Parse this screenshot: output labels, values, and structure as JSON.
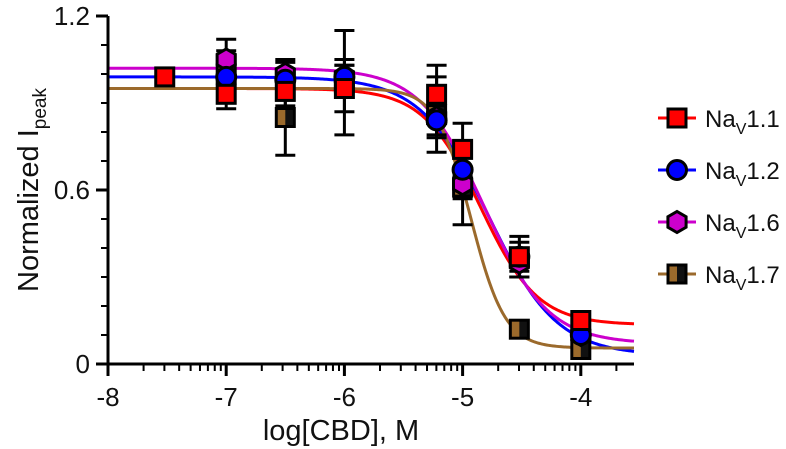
{
  "chart_data": {
    "type": "scatter",
    "xlabel": "log[CBD], M",
    "ylabel": {
      "main": "Normalized I",
      "sub": "peak"
    },
    "xlim": [
      -8,
      -3.55
    ],
    "ylim": [
      0,
      1.2
    ],
    "x_ticks": [
      {
        "value": -8,
        "label": "-8"
      },
      {
        "value": -7,
        "label": "-7"
      },
      {
        "value": -6,
        "label": "-6"
      },
      {
        "value": -5,
        "label": "-5"
      },
      {
        "value": -4,
        "label": "-4"
      }
    ],
    "y_ticks": [
      {
        "value": 0,
        "label": "0"
      },
      {
        "value": 0.6,
        "label": "0.6"
      },
      {
        "value": 1.2,
        "label": "1.2"
      }
    ],
    "legend_position": "right",
    "series": [
      {
        "legend": {
          "main": "Na",
          "sub": "V",
          "tail": "1.1"
        },
        "marker": "square",
        "color": "#ff0000",
        "fit": {
          "top": 0.95,
          "bottom": 0.135,
          "logIC50": -4.85,
          "hill": 1.8
        },
        "points": [
          {
            "x": -7.52,
            "y": 0.99,
            "err": 0.0
          },
          {
            "x": -7.0,
            "y": 0.93,
            "err": 0.05
          },
          {
            "x": -6.5,
            "y": 0.94,
            "err": 0.05
          },
          {
            "x": -6.0,
            "y": 0.95,
            "err": 0.08
          },
          {
            "x": -5.22,
            "y": 0.93,
            "err": 0.1
          },
          {
            "x": -5.0,
            "y": 0.74,
            "err": 0.09
          },
          {
            "x": -4.52,
            "y": 0.37,
            "err": 0.07
          },
          {
            "x": -4.0,
            "y": 0.15,
            "err": 0.03
          }
        ]
      },
      {
        "legend": {
          "main": "Na",
          "sub": "V",
          "tail": "1.2"
        },
        "marker": "circle",
        "color": "#0000ff",
        "fit": {
          "top": 0.99,
          "bottom": 0.03,
          "logIC50": -4.78,
          "hill": 1.5
        },
        "points": [
          {
            "x": -7.0,
            "y": 0.99,
            "err": 0.07
          },
          {
            "x": -6.5,
            "y": 0.98,
            "err": 0.07
          },
          {
            "x": -6.0,
            "y": 0.99,
            "err": 0.06
          },
          {
            "x": -5.22,
            "y": 0.84,
            "err": 0.06
          },
          {
            "x": -5.0,
            "y": 0.67,
            "err": 0.06
          },
          {
            "x": -4.52,
            "y": 0.37,
            "err": 0.05
          },
          {
            "x": -4.0,
            "y": 0.1,
            "err": 0.03
          }
        ]
      },
      {
        "legend": {
          "main": "Na",
          "sub": "V",
          "tail": "1.6"
        },
        "marker": "hexagon",
        "color": "#cc00cc",
        "fit": {
          "top": 1.02,
          "bottom": 0.07,
          "logIC50": -4.82,
          "hill": 1.6
        },
        "points": [
          {
            "x": -7.0,
            "y": 1.05,
            "err": 0.07
          },
          {
            "x": -6.5,
            "y": 1.0,
            "err": 0.04
          },
          {
            "x": -6.0,
            "y": 0.99,
            "err": 0.04
          },
          {
            "x": -5.22,
            "y": 0.85,
            "err": 0.06
          },
          {
            "x": -5.0,
            "y": 0.62,
            "err": 0.05
          },
          {
            "x": -4.52,
            "y": 0.35,
            "err": 0.05
          },
          {
            "x": -4.0,
            "y": 0.1,
            "err": 0.03
          }
        ]
      },
      {
        "legend": {
          "main": "Na",
          "sub": "V",
          "tail": "1.7"
        },
        "marker": "halfsquare",
        "color": "#9b6a2c",
        "fit": {
          "top": 0.95,
          "bottom": 0.055,
          "logIC50": -4.93,
          "hill": 3.0
        },
        "points": [
          {
            "x": -7.0,
            "y": 1.0,
            "err": 0.08
          },
          {
            "x": -6.5,
            "y": 0.85,
            "err": 0.13
          },
          {
            "x": -6.0,
            "y": 0.97,
            "err": 0.18
          },
          {
            "x": -5.22,
            "y": 0.86,
            "err": 0.13
          },
          {
            "x": -5.0,
            "y": 0.61,
            "err": 0.13
          },
          {
            "x": -4.52,
            "y": 0.12,
            "err": 0.0
          },
          {
            "x": -4.0,
            "y": 0.05,
            "err": 0.0
          }
        ]
      }
    ]
  }
}
